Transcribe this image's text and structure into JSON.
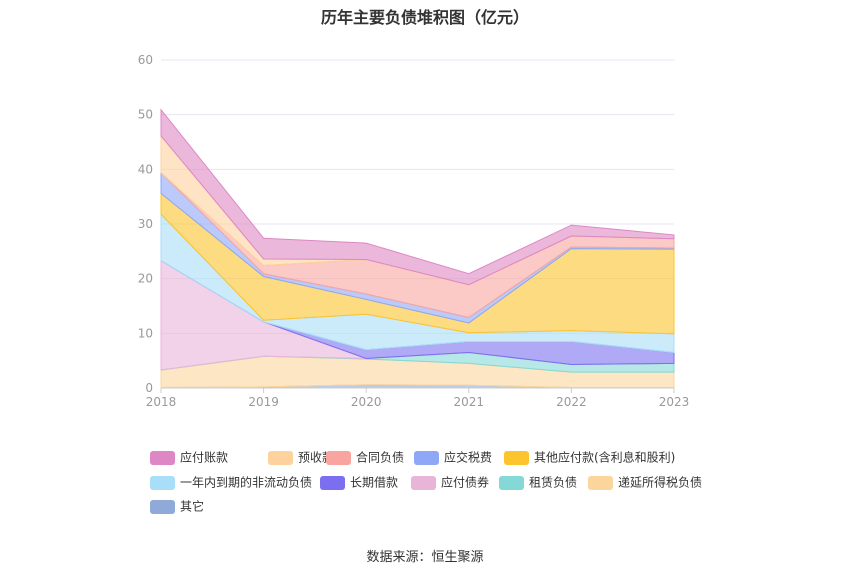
{
  "title": "历年主要负债堆积图（亿元）",
  "source": "数据来源：恒生聚源",
  "chart_data": {
    "type": "area",
    "stacked": true,
    "categories": [
      "2018",
      "2019",
      "2020",
      "2021",
      "2022",
      "2023"
    ],
    "ylim": [
      0,
      60
    ],
    "yticks": [
      0,
      10,
      20,
      30,
      40,
      50,
      60
    ],
    "grid": true,
    "legend_position": "bottom",
    "series": [
      {
        "name": "应付账款",
        "color": "#dd88c4",
        "values": [
          4.8,
          3.8,
          3.0,
          2.0,
          2.0,
          0.7
        ]
      },
      {
        "name": "预收款项",
        "color": "#fdd29c",
        "values": [
          6.7,
          1.2,
          0.0,
          0.0,
          0.0,
          0.0
        ]
      },
      {
        "name": "合同负债",
        "color": "#f8a5a0",
        "values": [
          0.0,
          1.5,
          6.3,
          6.0,
          2.0,
          1.7
        ]
      },
      {
        "name": "应交税费",
        "color": "#8ea7f6",
        "values": [
          3.8,
          0.5,
          1.0,
          1.0,
          0.3,
          0.2
        ]
      },
      {
        "name": "其他应付款(含利息和股利)",
        "color": "#fcc42d",
        "values": [
          3.8,
          8.0,
          2.7,
          1.8,
          15.0,
          15.5
        ]
      },
      {
        "name": "一年内到期的非流动负债",
        "color": "#a8def7",
        "values": [
          8.5,
          0.3,
          6.5,
          1.6,
          2.0,
          3.4
        ]
      },
      {
        "name": "长期借款",
        "color": "#7b6ff0",
        "values": [
          0.0,
          0.0,
          1.6,
          2.0,
          4.2,
          2.0
        ]
      },
      {
        "name": "应付债券",
        "color": "#e8b4d8",
        "values": [
          20.0,
          6.3,
          0.0,
          0.0,
          0.0,
          0.0
        ]
      },
      {
        "name": "租赁负债",
        "color": "#84d8d5",
        "values": [
          0.0,
          0.0,
          0.1,
          2.0,
          1.4,
          1.6
        ]
      },
      {
        "name": "递延所得税负债",
        "color": "#fcd59c",
        "values": [
          3.2,
          5.6,
          4.7,
          4.0,
          2.8,
          2.8
        ]
      },
      {
        "name": "其它",
        "color": "#8faad9",
        "values": [
          0.1,
          0.2,
          0.6,
          0.5,
          0.1,
          0.1
        ]
      }
    ]
  }
}
